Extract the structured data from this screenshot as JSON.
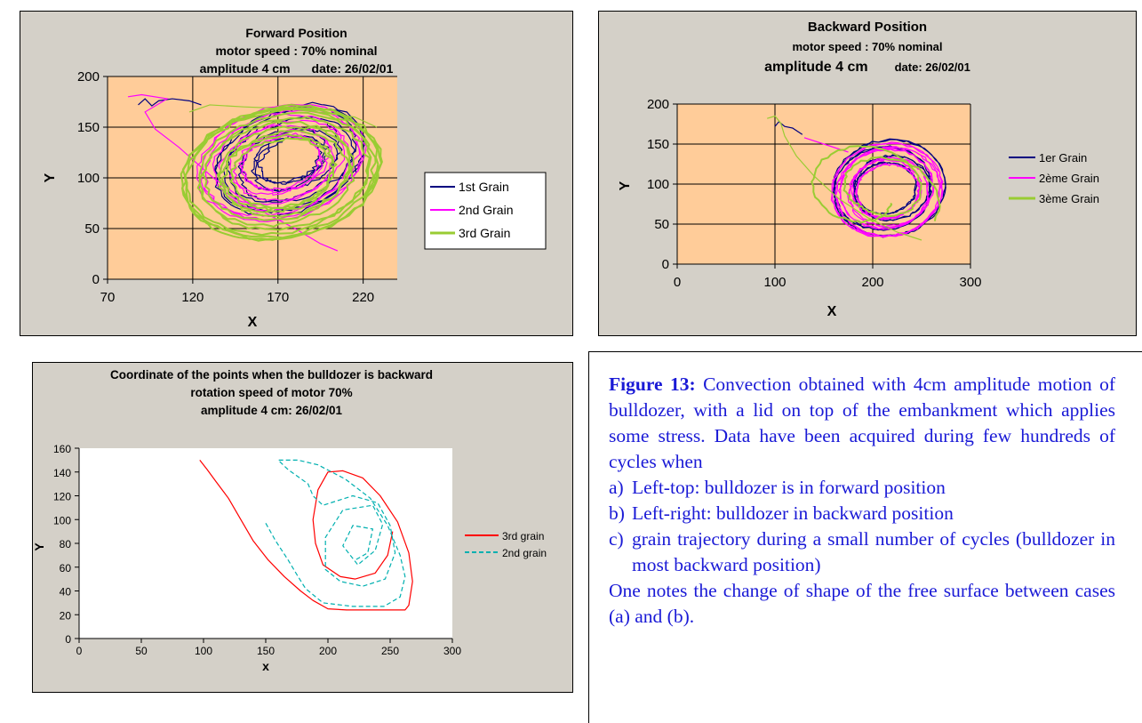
{
  "charts": [
    {
      "title_lines": [
        "Forward Position",
        "motor speed : 70% nominal"
      ],
      "title_line3": {
        "left": "amplitude 4 cm",
        "right": "date: 26/02/01"
      }
    },
    {
      "title_lines": [
        "Backward Position",
        "motor speed : 70% nominal"
      ],
      "title_line3": {
        "left": "amplitude 4 cm",
        "right": "date: 26/02/01"
      }
    },
    {
      "title_lines": [
        "Coordinate of the points when the bulldozer is backward",
        "rotation speed of motor 70%",
        "amplitude 4 cm: 26/02/01"
      ]
    }
  ],
  "caption": {
    "label": "Figure 13:",
    "intro": "Convection obtained with 4cm amplitude motion of bulldozer, with a lid on top of the embankment which applies some stress. Data have been acquired during few hundreds of cycles when",
    "items": [
      {
        "marker": "a)",
        "text": "Left-top: bulldozer is in forward position"
      },
      {
        "marker": "b)",
        "text": "Left-right: bulldozer in backward position"
      },
      {
        "marker": "c)",
        "text": "grain trajectory during a small number of cycles (bulldozer in most backward position)"
      }
    ],
    "outro": "One notes the change of shape of the free surface between cases (a) and (b)."
  },
  "chart_data": [
    {
      "type": "line",
      "xlabel": "X",
      "ylabel": "Y",
      "xlim": [
        70,
        240
      ],
      "ylim": [
        0,
        200
      ],
      "xticks": [
        70,
        120,
        170,
        220
      ],
      "yticks": [
        0,
        50,
        100,
        150,
        200
      ],
      "grid": true,
      "legend": "right",
      "plot_bg": "#ffcc99",
      "series": [
        {
          "name": "1st Grain",
          "color": "#000080",
          "loop": {
            "cx": 177,
            "cy": 118,
            "rx": 40,
            "ry": 58,
            "shrink": 0.6,
            "turns": 9,
            "seed": 11
          },
          "tail": [
            [
              88,
              172
            ],
            [
              92,
              178
            ],
            [
              96,
              171
            ],
            [
              100,
              176
            ],
            [
              108,
              178
            ],
            [
              118,
              176
            ],
            [
              125,
              172
            ]
          ]
        },
        {
          "name": "2nd Grain",
          "color": "#ff00ff",
          "loop": {
            "cx": 172,
            "cy": 115,
            "rx": 46,
            "ry": 60,
            "shrink": 0.55,
            "turns": 9,
            "seed": 23
          },
          "tail": [
            [
              82,
              180
            ],
            [
              90,
              182
            ],
            [
              105,
              178
            ],
            [
              92,
              165
            ],
            [
              98,
              148
            ],
            [
              112,
              130
            ],
            [
              132,
              100
            ],
            [
              155,
              72
            ],
            [
              180,
              50
            ],
            [
              195,
              35
            ],
            [
              205,
              28
            ]
          ]
        },
        {
          "name": "3rd Grain",
          "color": "#99cc33",
          "loop": {
            "cx": 172,
            "cy": 105,
            "rx": 56,
            "ry": 68,
            "shrink": 0.5,
            "turns": 11,
            "seed": 37
          },
          "tail": [
            [
              118,
              165
            ],
            [
              130,
              172
            ],
            [
              150,
              170
            ],
            [
              180,
              168
            ],
            [
              215,
              160
            ],
            [
              228,
              150
            ]
          ]
        }
      ]
    },
    {
      "type": "line",
      "xlabel": "X",
      "ylabel": "Y",
      "xlim": [
        0,
        300
      ],
      "ylim": [
        0,
        200
      ],
      "xticks": [
        0,
        100,
        200,
        300
      ],
      "yticks": [
        0,
        50,
        100,
        150,
        200
      ],
      "grid": true,
      "legend": "right",
      "plot_bg": "#ffcc99",
      "series": [
        {
          "name": "1er Grain",
          "color": "#000080",
          "loop": {
            "cx": 215,
            "cy": 95,
            "rx": 58,
            "ry": 62,
            "shrink": 0.5,
            "turns": 8,
            "seed": 41
          },
          "tail": [
            [
              100,
              172
            ],
            [
              104,
              178
            ],
            [
              110,
              172
            ],
            [
              118,
              170
            ],
            [
              128,
              162
            ]
          ]
        },
        {
          "name": "2ème Grain",
          "color": "#ff00ff",
          "loop": {
            "cx": 215,
            "cy": 92,
            "rx": 56,
            "ry": 60,
            "shrink": 0.45,
            "turns": 12,
            "seed": 53
          },
          "tail": [
            [
              130,
              158
            ],
            [
              150,
              150
            ],
            [
              175,
              140
            ]
          ]
        },
        {
          "name": "3ème Grain",
          "color": "#99cc33",
          "loop": {
            "cx": 200,
            "cy": 85,
            "rx": 70,
            "ry": 60,
            "shrink": 0.7,
            "turns": 2,
            "seed": 67
          },
          "tail": [
            [
              92,
              182
            ],
            [
              100,
              185
            ],
            [
              106,
              176
            ],
            [
              110,
              160
            ],
            [
              122,
              135
            ],
            [
              140,
              110
            ],
            [
              165,
              82
            ],
            [
              195,
              58
            ],
            [
              225,
              40
            ],
            [
              250,
              30
            ]
          ]
        }
      ]
    },
    {
      "type": "line",
      "xlabel": "x",
      "ylabel": "Y",
      "xlim": [
        0,
        300
      ],
      "ylim": [
        0,
        160
      ],
      "xticks": [
        0,
        50,
        100,
        150,
        200,
        250,
        300
      ],
      "yticks": [
        0,
        20,
        40,
        60,
        80,
        100,
        120,
        140,
        160
      ],
      "grid": false,
      "legend": "right",
      "plot_bg": "#ffffff",
      "series": [
        {
          "name": "3rd grain",
          "color": "#ff0000",
          "dash": false,
          "points": [
            [
              97,
              150
            ],
            [
              103,
              142
            ],
            [
              110,
              132
            ],
            [
              120,
              118
            ],
            [
              130,
              100
            ],
            [
              140,
              82
            ],
            [
              152,
              66
            ],
            [
              165,
              52
            ],
            [
              178,
              40
            ],
            [
              188,
              32
            ],
            [
              200,
              25
            ],
            [
              215,
              24
            ],
            [
              240,
              24
            ],
            [
              262,
              24
            ],
            [
              265,
              28
            ],
            [
              268,
              48
            ],
            [
              265,
              72
            ],
            [
              256,
              98
            ],
            [
              242,
              120
            ],
            [
              228,
              135
            ],
            [
              212,
              141
            ],
            [
              200,
              140
            ],
            [
              192,
              125
            ],
            [
              188,
              100
            ],
            [
              190,
              80
            ],
            [
              196,
              62
            ],
            [
              210,
              52
            ],
            [
              222,
              50
            ],
            [
              238,
              55
            ],
            [
              248,
              70
            ],
            [
              252,
              90
            ]
          ]
        },
        {
          "name": "2nd grain",
          "color": "#00b0b0",
          "dash": true,
          "points": [
            [
              150,
              97
            ],
            [
              158,
              82
            ],
            [
              168,
              66
            ],
            [
              176,
              52
            ],
            [
              182,
              42
            ],
            [
              196,
              30
            ],
            [
              220,
              27
            ],
            [
              245,
              27
            ],
            [
              258,
              35
            ],
            [
              262,
              52
            ],
            [
              258,
              70
            ],
            [
              248,
              95
            ],
            [
              234,
              118
            ],
            [
              214,
              134
            ],
            [
              192,
              146
            ],
            [
              176,
              150
            ],
            [
              160,
              150
            ],
            [
              168,
              142
            ],
            [
              184,
              130
            ],
            [
              188,
              120
            ],
            [
              196,
              112
            ],
            [
              220,
              120
            ],
            [
              240,
              114
            ],
            [
              250,
              95
            ],
            [
              254,
              72
            ],
            [
              246,
              50
            ],
            [
              228,
              44
            ],
            [
              210,
              48
            ],
            [
              198,
              58
            ],
            [
              198,
              85
            ],
            [
              212,
              108
            ],
            [
              236,
              112
            ],
            [
              244,
              96
            ],
            [
              238,
              74
            ],
            [
              224,
              62
            ],
            [
              212,
              78
            ],
            [
              220,
              95
            ],
            [
              236,
              92
            ],
            [
              232,
              72
            ],
            [
              222,
              66
            ]
          ]
        }
      ]
    }
  ]
}
